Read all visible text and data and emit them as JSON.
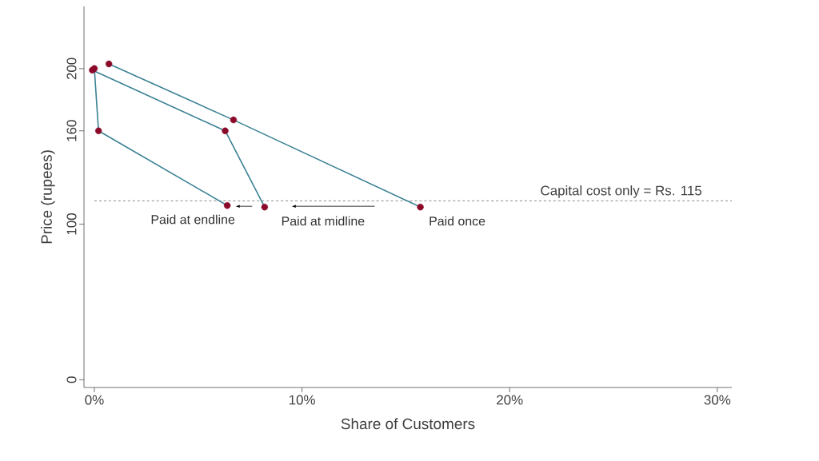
{
  "chart_data": {
    "type": "line",
    "xlabel": "Share of Customers",
    "ylabel": "Price (rupees)",
    "series": [
      {
        "name": "Paid at endline",
        "color": "#3b8194",
        "colors": [
          "#8b0a2a",
          "#8b0a2a",
          "#8b0a2a"
        ],
        "x": [
          0,
          0.2,
          6.4
        ],
        "values": [
          200,
          160,
          112
        ]
      },
      {
        "name": "Paid at midline",
        "color": "#3b8194",
        "colors": [
          "#8b0a2a",
          "#8b0a2a",
          "#8b0a2a"
        ],
        "x": [
          -0.1,
          6.3,
          8.2
        ],
        "values": [
          199,
          160,
          111
        ]
      },
      {
        "name": "Paid once",
        "color": "#3b8194",
        "colors": [
          "#8b0a2a",
          "#8b0a2a",
          "#8b0a2a"
        ],
        "x": [
          0.7,
          6.7,
          15.7
        ],
        "values": [
          203,
          167,
          111
        ]
      }
    ],
    "ref_lines": [
      {
        "axis": "y",
        "value": 115,
        "label": "Capital cost only = Rs. 115",
        "color": "#555555",
        "line_style": "dashed"
      }
    ],
    "xlim": [
      -0.5,
      30.7
    ],
    "ylim": [
      -5,
      240
    ],
    "xticks": [
      {
        "value": 0,
        "label": "0%"
      },
      {
        "value": 10,
        "label": "10%"
      },
      {
        "value": 20,
        "label": "20%"
      },
      {
        "value": 30,
        "label": "30%"
      }
    ],
    "yticks": [
      0,
      100,
      160,
      200
    ],
    "marker": "circle",
    "line_style": "solid",
    "grid": false
  }
}
